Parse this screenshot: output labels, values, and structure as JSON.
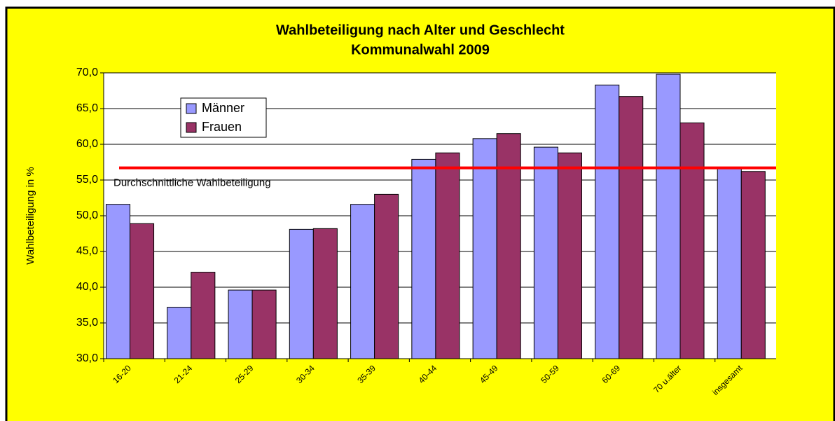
{
  "chart_data": {
    "type": "bar",
    "title": [
      "Wahlbeteiligung nach Alter und Geschlecht",
      "Kommunalwahl 2009"
    ],
    "y_label": "Wahlbeteiligung in %",
    "categories": [
      "16-20",
      "21-24",
      "25-29",
      "30-34",
      "35-39",
      "40-44",
      "45-49",
      "50-59",
      "60-69",
      "70 u.älter",
      "insgesamt"
    ],
    "series": [
      {
        "name": "Männer",
        "color": "#9999ff",
        "values": [
          51.6,
          37.2,
          39.6,
          48.1,
          51.6,
          57.9,
          60.8,
          59.6,
          68.3,
          69.8,
          56.6
        ]
      },
      {
        "name": "Frauen",
        "color": "#993366",
        "values": [
          48.9,
          42.1,
          39.6,
          48.2,
          53.0,
          58.8,
          61.5,
          58.8,
          66.7,
          63.0,
          56.2
        ]
      }
    ],
    "average_line": {
      "label": "Durchschnittliche Wahlbeteiligung",
      "value": 56.7,
      "color": "#ff0000"
    },
    "ylim": [
      30,
      70
    ],
    "yticks": [
      {
        "value": 30,
        "label": "30,0"
      },
      {
        "value": 35,
        "label": "35,0"
      },
      {
        "value": 40,
        "label": "40,0"
      },
      {
        "value": 45,
        "label": "45,0"
      },
      {
        "value": 50,
        "label": "50,0"
      },
      {
        "value": 55,
        "label": "55,0"
      },
      {
        "value": 60,
        "label": "60,0"
      },
      {
        "value": 65,
        "label": "65,0"
      },
      {
        "value": 70,
        "label": "70,0"
      }
    ],
    "grid": true,
    "legend": "upper left",
    "background": "#ffff00"
  }
}
